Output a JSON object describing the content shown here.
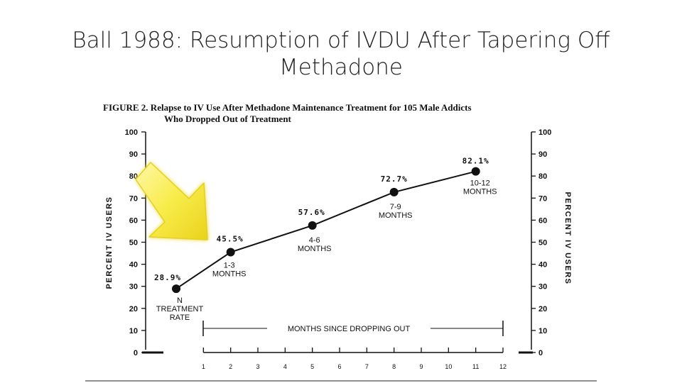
{
  "slide": {
    "title_line1": "Ball 1988: Resumption of IVDU After Tapering Off",
    "title_line2": "Methadone"
  },
  "chart_data": {
    "type": "line",
    "figure_title_line1": "FIGURE 2.  Relapse to IV Use After Methadone Maintenance Treatment for 105 Male Addicts",
    "figure_title_line2": "Who Dropped Out of Treatment",
    "ylabel_left": "PERCENT IV USERS",
    "ylabel_right": "PERCENT IV USERS",
    "ylim": [
      0,
      100
    ],
    "yticks": [
      0,
      10,
      20,
      30,
      40,
      50,
      60,
      70,
      80,
      90,
      100
    ],
    "xlim": [
      -1,
      12
    ],
    "xticks": [
      1,
      2,
      3,
      4,
      5,
      6,
      7,
      8,
      9,
      10,
      11,
      12
    ],
    "span_label": "MONTHS SINCE DROPPING OUT",
    "grid": false,
    "series": [
      {
        "points": [
          {
            "x": 0,
            "y": 28.9,
            "value_label": "28.9%",
            "label_lines": [
              "N",
              "TREATMENT",
              "RATE"
            ]
          },
          {
            "x": 2,
            "y": 45.5,
            "value_label": "45.5%",
            "label_lines": [
              "1-3",
              "MONTHS"
            ]
          },
          {
            "x": 5,
            "y": 57.6,
            "value_label": "57.6%",
            "label_lines": [
              "4-6",
              "MONTHS"
            ]
          },
          {
            "x": 8,
            "y": 72.7,
            "value_label": "72.7%",
            "label_lines": [
              "7-9",
              "MONTHS"
            ]
          },
          {
            "x": 11,
            "y": 82.1,
            "value_label": "82.1%",
            "label_lines": [
              "10-12",
              "MONTHS"
            ]
          }
        ]
      }
    ],
    "annotation_arrow": {
      "color": "#f5e63c",
      "points_to_x": 0
    }
  }
}
